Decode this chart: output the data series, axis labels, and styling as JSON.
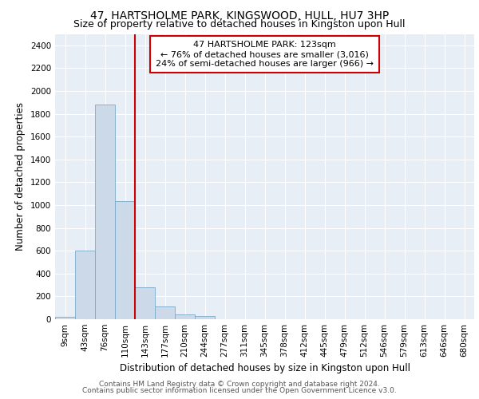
{
  "title1": "47, HARTSHOLME PARK, KINGSWOOD, HULL, HU7 3HP",
  "title2": "Size of property relative to detached houses in Kingston upon Hull",
  "xlabel": "Distribution of detached houses by size in Kingston upon Hull",
  "ylabel": "Number of detached properties",
  "footer1": "Contains HM Land Registry data © Crown copyright and database right 2024.",
  "footer2": "Contains public sector information licensed under the Open Government Licence v3.0.",
  "annotation_line1": "47 HARTSHOLME PARK: 123sqm",
  "annotation_line2": "← 76% of detached houses are smaller (3,016)",
  "annotation_line3": "24% of semi-detached houses are larger (966) →",
  "bar_color": "#ccd9e8",
  "bar_edge_color": "#7aaac8",
  "vline_color": "#cc0000",
  "vline_x_index": 3.5,
  "categories": [
    "9sqm",
    "43sqm",
    "76sqm",
    "110sqm",
    "143sqm",
    "177sqm",
    "210sqm",
    "244sqm",
    "277sqm",
    "311sqm",
    "345sqm",
    "378sqm",
    "412sqm",
    "445sqm",
    "479sqm",
    "512sqm",
    "546sqm",
    "579sqm",
    "613sqm",
    "646sqm",
    "680sqm"
  ],
  "values": [
    18,
    600,
    1880,
    1035,
    280,
    115,
    45,
    25,
    0,
    0,
    0,
    0,
    0,
    0,
    0,
    0,
    0,
    0,
    0,
    0,
    0
  ],
  "ylim": [
    0,
    2500
  ],
  "yticks": [
    0,
    200,
    400,
    600,
    800,
    1000,
    1200,
    1400,
    1600,
    1800,
    2000,
    2200,
    2400
  ],
  "ax_background": "#e8eef5",
  "grid_color": "#ffffff",
  "title1_fontsize": 10,
  "title2_fontsize": 9,
  "axis_label_fontsize": 8.5,
  "tick_fontsize": 7.5,
  "annotation_fontsize": 8,
  "footer_fontsize": 6.5
}
